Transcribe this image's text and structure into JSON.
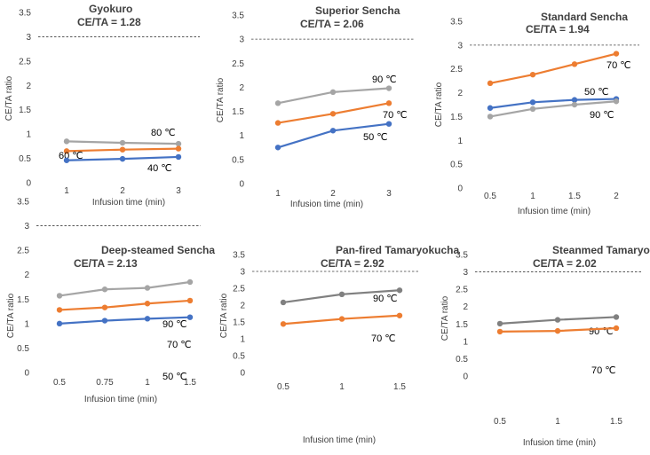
{
  "figure": {
    "series_colors": {
      "40 ℃": "#4472c4",
      "50 ℃": "#4472c4",
      "60 ℃": "#ed7d31",
      "70 ℃": "#ed7d31",
      "80 ℃": "#a5a5a5",
      "90 ℃": "#a5a5a5",
      "90 ℃ dark": "#808080"
    },
    "reference_color": "#404040"
  },
  "chart_data": [
    {
      "type": "line",
      "title": "Gyokuro",
      "subtitle": "CE/TA = 1.28",
      "xlabel": "Infusion time (min)",
      "ylabel": "CE/TA ratio",
      "categories": [
        "1",
        "2",
        "3"
      ],
      "ylim": [
        0,
        3.5
      ],
      "yticks": [
        "0",
        "0.5",
        "1",
        "1.5",
        "2",
        "2.5",
        "3",
        "3.5"
      ],
      "reference_line": 3,
      "series": [
        {
          "name": "80 ℃",
          "label": "80 ℃",
          "color": "#a5a5a5",
          "values": [
            0.85,
            0.82,
            0.8
          ]
        },
        {
          "name": "60 ℃",
          "label": "60 ℃",
          "color": "#ed7d31",
          "values": [
            0.65,
            0.68,
            0.7
          ]
        },
        {
          "name": "40 ℃",
          "label": "40 ℃",
          "color": "#4472c4",
          "values": [
            0.46,
            0.49,
            0.53
          ]
        }
      ]
    },
    {
      "type": "line",
      "title": "Superior Sencha",
      "subtitle": "CE/TA = 2.06",
      "xlabel": "Infusion time (min)",
      "ylabel": "CE/TA ratio",
      "categories": [
        "1",
        "2",
        "3"
      ],
      "ylim": [
        0,
        3.5
      ],
      "yticks": [
        "0",
        "0.5",
        "1",
        "1.5",
        "2",
        "2.5",
        "3",
        "3.5"
      ],
      "reference_line": 3,
      "series": [
        {
          "name": "90 ℃",
          "label": "90 ℃",
          "color": "#a5a5a5",
          "values": [
            1.67,
            1.9,
            1.98
          ]
        },
        {
          "name": "70 ℃",
          "label": "70 ℃",
          "color": "#ed7d31",
          "values": [
            1.26,
            1.45,
            1.67
          ]
        },
        {
          "name": "50 ℃",
          "label": "50 ℃",
          "color": "#4472c4",
          "values": [
            0.75,
            1.1,
            1.24
          ]
        }
      ]
    },
    {
      "type": "line",
      "title": "Standard Sencha",
      "subtitle": "CE/TA = 1.94",
      "xlabel": "Infusion time (min)",
      "ylabel": "CE/TA ratio",
      "categories": [
        "0.5",
        "1",
        "1.5",
        "2"
      ],
      "ylim": [
        0,
        3.5
      ],
      "yticks": [
        "0",
        "0.5",
        "1",
        "1.5",
        "2",
        "2.5",
        "3",
        "3.5"
      ],
      "reference_line": 3,
      "series": [
        {
          "name": "70 ℃",
          "label": "70 ℃",
          "color": "#ed7d31",
          "values": [
            2.2,
            2.38,
            2.6,
            2.82
          ]
        },
        {
          "name": "50 ℃",
          "label": "50 ℃",
          "color": "#4472c4",
          "values": [
            1.68,
            1.8,
            1.85,
            1.87
          ]
        },
        {
          "name": "90 ℃",
          "label": "90 ℃",
          "color": "#a5a5a5",
          "values": [
            1.5,
            1.66,
            1.75,
            1.82
          ]
        }
      ]
    },
    {
      "type": "line",
      "title": "Deep-steamed Sencha",
      "subtitle": "CE/TA = 2.13",
      "xlabel": "Infusion time (min)",
      "ylabel": "CE/TA ratio",
      "categories": [
        "0.5",
        "0.75",
        "1",
        "1.5"
      ],
      "ylim": [
        0,
        3.5
      ],
      "yticks": [
        "0",
        "0.5",
        "1",
        "1.5",
        "2",
        "2.5",
        "3",
        "3.5"
      ],
      "reference_line": 3,
      "series": [
        {
          "name": "90 ℃",
          "label": "90 ℃",
          "color": "#a5a5a5",
          "values": [
            1.57,
            1.7,
            1.73,
            1.85
          ]
        },
        {
          "name": "70 ℃",
          "label": "70 ℃",
          "color": "#ed7d31",
          "values": [
            1.28,
            1.33,
            1.41,
            1.47
          ]
        },
        {
          "name": "50 ℃",
          "label": "50 ℃",
          "color": "#4472c4",
          "values": [
            1.0,
            1.06,
            1.1,
            1.13
          ]
        }
      ]
    },
    {
      "type": "line",
      "title": "Pan-fired Tamaryokucha",
      "subtitle": "CE/TA = 2.92",
      "xlabel": "Infusion time (min)",
      "ylabel": "CE/TA ratio",
      "categories": [
        "0.5",
        "1",
        "1.5"
      ],
      "ylim": [
        0,
        3.5
      ],
      "yticks": [
        "0",
        "0.5",
        "1",
        "1.5",
        "2",
        "2.5",
        "3",
        "3.5"
      ],
      "reference_line": 3,
      "series": [
        {
          "name": "90 ℃",
          "label": "90 ℃",
          "color": "#808080",
          "values": [
            2.08,
            2.32,
            2.44
          ]
        },
        {
          "name": "70 ℃",
          "label": "70 ℃",
          "color": "#ed7d31",
          "values": [
            1.44,
            1.59,
            1.69
          ]
        }
      ]
    },
    {
      "type": "line",
      "title": "Steanmed Tamaryokucha",
      "subtitle": "CE/TA = 2.02",
      "xlabel": "Infusion time (min)",
      "ylabel": "CE/TA ratio",
      "categories": [
        "0.5",
        "1",
        "1.5"
      ],
      "ylim": [
        0,
        3.5
      ],
      "yticks": [
        "0",
        "0.5",
        "1",
        "1.5",
        "2",
        "2.5",
        "3",
        "3.5"
      ],
      "reference_line": 3,
      "series": [
        {
          "name": "90 ℃",
          "label": "90 ℃",
          "color": "#808080",
          "values": [
            1.51,
            1.62,
            1.7
          ]
        },
        {
          "name": "70 ℃",
          "label": "70 ℃",
          "color": "#ed7d31",
          "values": [
            1.28,
            1.3,
            1.38
          ]
        }
      ]
    }
  ]
}
